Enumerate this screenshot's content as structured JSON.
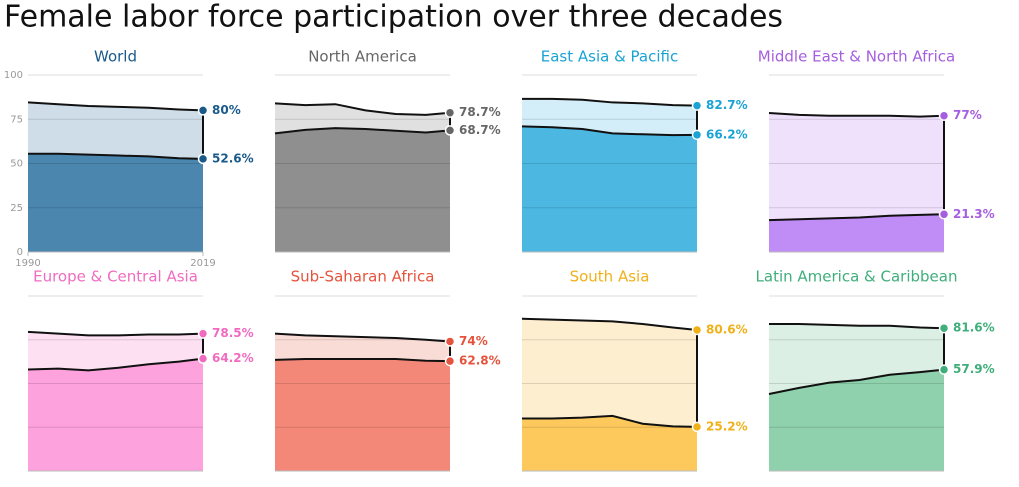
{
  "title": "Female labor force participation over three decades",
  "chart_data": [
    {
      "type": "area",
      "title": "World",
      "color": "#1a5a8a",
      "fill": "#4a86ae",
      "band_fill": "#cfdde8",
      "show_axis": true,
      "x": [
        1990,
        1995,
        2000,
        2005,
        2010,
        2015,
        2019
      ],
      "xlim": [
        1990,
        2019
      ],
      "xticks": [
        1990,
        2019
      ],
      "ylim": [
        0,
        100
      ],
      "yticks": [
        0,
        25,
        50,
        75,
        100
      ],
      "series": [
        {
          "values": [
            84.5,
            83.5,
            82.5,
            82,
            81.5,
            80.5,
            80
          ],
          "value_labels": [
            null,
            null,
            null,
            null,
            null,
            null,
            "80%"
          ]
        },
        {
          "values": [
            55.5,
            55.5,
            55,
            54.5,
            54,
            53,
            52.6
          ],
          "value_labels": [
            null,
            null,
            null,
            null,
            null,
            null,
            "52.6%"
          ]
        }
      ]
    },
    {
      "type": "area",
      "title": "North America",
      "color": "#666666",
      "fill": "#8f8f8f",
      "band_fill": "#e0e0e0",
      "show_axis": false,
      "x": [
        1990,
        1995,
        2000,
        2005,
        2010,
        2015,
        2019
      ],
      "xlim": [
        1990,
        2019
      ],
      "ylim": [
        0,
        100
      ],
      "yticks": [
        0,
        25,
        50,
        75,
        100
      ],
      "series": [
        {
          "values": [
            84,
            83,
            83.5,
            80,
            78,
            77.5,
            78.7
          ],
          "value_labels": [
            null,
            null,
            null,
            null,
            null,
            null,
            "78.7%"
          ]
        },
        {
          "values": [
            67,
            69,
            70,
            69.5,
            68.5,
            67.5,
            68.7
          ],
          "value_labels": [
            null,
            null,
            null,
            null,
            null,
            null,
            "68.7%"
          ]
        }
      ]
    },
    {
      "type": "area",
      "title": "East Asia & Pacific",
      "color": "#1aa3d4",
      "fill": "#4cb8e2",
      "band_fill": "#d3eef9",
      "show_axis": false,
      "x": [
        1990,
        1995,
        2000,
        2005,
        2010,
        2015,
        2019
      ],
      "xlim": [
        1990,
        2019
      ],
      "ylim": [
        0,
        100
      ],
      "yticks": [
        0,
        25,
        50,
        75,
        100
      ],
      "series": [
        {
          "values": [
            86.5,
            86.5,
            86,
            84.5,
            84,
            83,
            82.7
          ],
          "value_labels": [
            null,
            null,
            null,
            null,
            null,
            null,
            "82.7%"
          ]
        },
        {
          "values": [
            71,
            70.5,
            69.5,
            67,
            66.5,
            66,
            66.2
          ],
          "value_labels": [
            null,
            null,
            null,
            null,
            null,
            null,
            "66.2%"
          ]
        }
      ]
    },
    {
      "type": "area",
      "title": "Middle East & North Africa",
      "color": "#a65ee0",
      "fill": "#c08cf5",
      "band_fill": "#efe0fc",
      "show_axis": false,
      "x": [
        1990,
        1995,
        2000,
        2005,
        2010,
        2015,
        2019
      ],
      "xlim": [
        1990,
        2019
      ],
      "ylim": [
        0,
        100
      ],
      "yticks": [
        0,
        25,
        50,
        75,
        100
      ],
      "series": [
        {
          "values": [
            78.5,
            77.5,
            77,
            77,
            77,
            76.5,
            77
          ],
          "value_labels": [
            null,
            null,
            null,
            null,
            null,
            null,
            "77%"
          ]
        },
        {
          "values": [
            18,
            18.5,
            19,
            19.5,
            20.5,
            21,
            21.3
          ],
          "value_labels": [
            null,
            null,
            null,
            null,
            null,
            null,
            "21.3%"
          ]
        }
      ]
    },
    {
      "type": "area",
      "title": "Europe & Central Asia",
      "color": "#f06bc0",
      "fill": "#fda2dc",
      "band_fill": "#fde0f2",
      "show_axis": false,
      "x": [
        1990,
        1995,
        2000,
        2005,
        2010,
        2015,
        2019
      ],
      "xlim": [
        1990,
        2019
      ],
      "ylim": [
        0,
        100
      ],
      "yticks": [
        0,
        25,
        50,
        75,
        100
      ],
      "series": [
        {
          "values": [
            79.5,
            78.5,
            77.5,
            77.5,
            78,
            78,
            78.5
          ],
          "value_labels": [
            null,
            null,
            null,
            null,
            null,
            null,
            "78.5%"
          ]
        },
        {
          "values": [
            58,
            58.5,
            57.5,
            59,
            61,
            62.5,
            64.2
          ],
          "value_labels": [
            null,
            null,
            null,
            null,
            null,
            null,
            "64.2%"
          ]
        }
      ]
    },
    {
      "type": "area",
      "title": "Sub-Saharan Africa",
      "color": "#e5533c",
      "fill": "#f48878",
      "band_fill": "#fadcd6",
      "show_axis": false,
      "x": [
        1990,
        1995,
        2000,
        2005,
        2010,
        2015,
        2019
      ],
      "xlim": [
        1990,
        2019
      ],
      "ylim": [
        0,
        100
      ],
      "yticks": [
        0,
        25,
        50,
        75,
        100
      ],
      "series": [
        {
          "values": [
            78.5,
            77.5,
            77,
            76.5,
            76,
            75,
            74
          ],
          "value_labels": [
            null,
            null,
            null,
            null,
            null,
            null,
            "74%"
          ]
        },
        {
          "values": [
            63.5,
            64,
            64,
            64,
            64,
            63,
            62.8
          ],
          "value_labels": [
            null,
            null,
            null,
            null,
            null,
            null,
            "62.8%"
          ]
        }
      ]
    },
    {
      "type": "area",
      "title": "South Asia",
      "color": "#f0b018",
      "fill": "#fdc95c",
      "band_fill": "#fdeecf",
      "show_axis": false,
      "x": [
        1990,
        1995,
        2000,
        2005,
        2010,
        2015,
        2019
      ],
      "xlim": [
        1990,
        2019
      ],
      "ylim": [
        0,
        100
      ],
      "yticks": [
        0,
        25,
        50,
        75,
        100
      ],
      "series": [
        {
          "values": [
            87,
            86.5,
            86,
            85.5,
            84,
            82,
            80.6
          ],
          "value_labels": [
            null,
            null,
            null,
            null,
            null,
            null,
            "80.6%"
          ]
        },
        {
          "values": [
            30,
            30,
            30.5,
            31.5,
            27,
            25.5,
            25.2
          ],
          "value_labels": [
            null,
            null,
            null,
            null,
            null,
            null,
            "25.2%"
          ]
        }
      ]
    },
    {
      "type": "area",
      "title": "Latin America & Caribbean",
      "color": "#3fae7a",
      "fill": "#8ed1ac",
      "band_fill": "#dcefe4",
      "show_axis": false,
      "x": [
        1990,
        1995,
        2000,
        2005,
        2010,
        2015,
        2019
      ],
      "xlim": [
        1990,
        2019
      ],
      "ylim": [
        0,
        100
      ],
      "yticks": [
        0,
        25,
        50,
        75,
        100
      ],
      "series": [
        {
          "values": [
            84,
            84,
            83.5,
            83,
            83,
            82,
            81.6
          ],
          "value_labels": [
            null,
            null,
            null,
            null,
            null,
            null,
            "81.6%"
          ]
        },
        {
          "values": [
            44,
            47.5,
            50.5,
            52,
            55,
            56.5,
            57.9
          ],
          "value_labels": [
            null,
            null,
            null,
            null,
            null,
            null,
            "57.9%"
          ]
        }
      ]
    }
  ]
}
